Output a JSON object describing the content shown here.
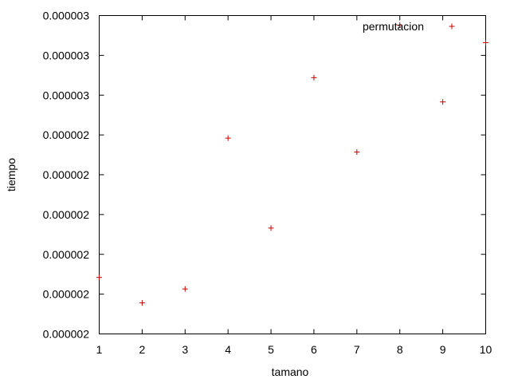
{
  "chart_data": {
    "type": "scatter",
    "title": "",
    "xlabel": "tamano",
    "ylabel": "tiempo",
    "x_ticks": [
      "1",
      "2",
      "3",
      "4",
      "5",
      "6",
      "7",
      "8",
      "9",
      "10"
    ],
    "y_ticks": [
      "0.000002",
      "0.000002",
      "0.000002",
      "0.000002",
      "0.000002",
      "0.000002",
      "0.000003",
      "0.000003",
      "0.000003"
    ],
    "xlim": [
      1,
      10
    ],
    "ylim": [
      0,
      8
    ],
    "grid": false,
    "legend_position": "top-right",
    "series": [
      {
        "name": "permutacion",
        "color": "#cc0000",
        "marker": "plus",
        "x": [
          1,
          2,
          3,
          4,
          5,
          6,
          7,
          8,
          9,
          10
        ],
        "y": [
          1.42,
          0.78,
          1.13,
          4.92,
          2.66,
          6.44,
          4.57,
          7.76,
          5.83,
          7.32
        ]
      }
    ]
  }
}
